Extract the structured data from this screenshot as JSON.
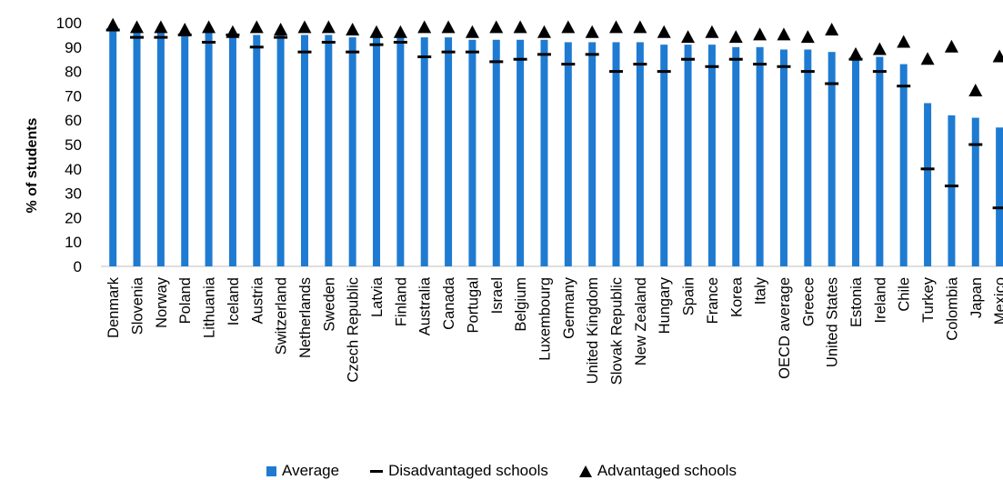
{
  "chart_data": {
    "type": "bar",
    "ylabel": "% of students",
    "ylim": [
      0,
      100
    ],
    "yticks": [
      0,
      10,
      20,
      30,
      40,
      50,
      60,
      70,
      80,
      90,
      100
    ],
    "grid": false,
    "legend_position": "bottom",
    "categories": [
      "Denmark",
      "Slovenia",
      "Norway",
      "Poland",
      "Lithuania",
      "Iceland",
      "Austria",
      "Switzerland",
      "Netherlands",
      "Sweden",
      "Czech Republic",
      "Latvia",
      "Finland",
      "Australia",
      "Canada",
      "Portugal",
      "Israel",
      "Belgium",
      "Luxembourg",
      "Germany",
      "United Kingdom",
      "Slovak Republic",
      "New Zealand",
      "Hungary",
      "Spain",
      "France",
      "Korea",
      "Italy",
      "OECD average",
      "Greece",
      "United States",
      "Estonia",
      "Ireland",
      "Chile",
      "Turkey",
      "Colombia",
      "Japan",
      "Mexico"
    ],
    "series": [
      {
        "name": "Average",
        "marker": "bar",
        "color": "#1F7BD1",
        "values": [
          98,
          96,
          96,
          96,
          96,
          96,
          95,
          95,
          95,
          95,
          94,
          94,
          94,
          94,
          94,
          93,
          93,
          93,
          93,
          92,
          92,
          92,
          92,
          91,
          91,
          91,
          90,
          90,
          89,
          89,
          88,
          86,
          86,
          83,
          67,
          62,
          61,
          57
        ]
      },
      {
        "name": "Disadvantaged schools",
        "marker": "dash",
        "color": "#000000",
        "values": [
          97,
          94,
          94,
          95,
          92,
          95,
          90,
          94,
          88,
          92,
          88,
          91,
          92,
          86,
          88,
          88,
          84,
          85,
          87,
          83,
          87,
          80,
          83,
          80,
          85,
          82,
          85,
          83,
          82,
          80,
          75,
          85,
          80,
          74,
          40,
          33,
          50,
          24
        ]
      },
      {
        "name": "Advantaged schools",
        "marker": "triangle",
        "color": "#000000",
        "values": [
          99,
          98,
          98,
          97,
          98,
          96,
          98,
          97,
          98,
          98,
          97,
          96,
          96,
          98,
          98,
          96,
          98,
          98,
          96,
          98,
          96,
          98,
          98,
          96,
          94,
          96,
          94,
          95,
          95,
          94,
          97,
          87,
          89,
          92,
          85,
          90,
          72,
          86
        ]
      }
    ]
  }
}
